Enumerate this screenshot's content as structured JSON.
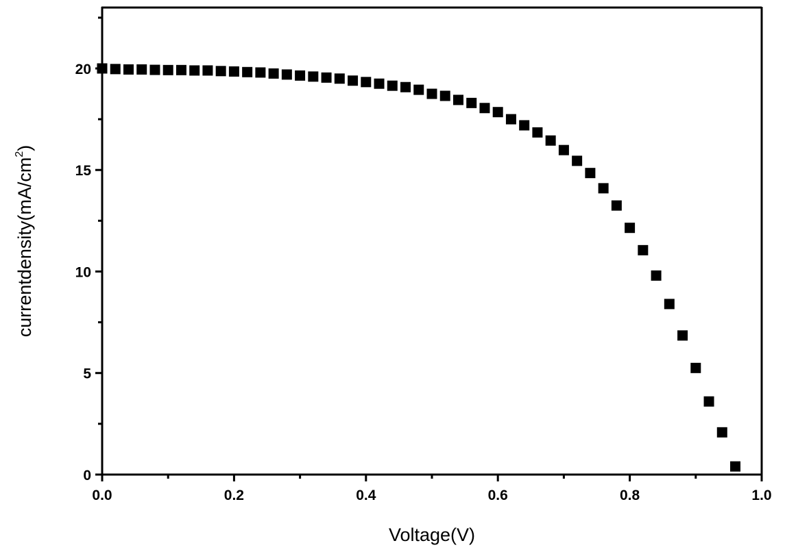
{
  "chart_data": {
    "type": "scatter",
    "title": "",
    "xlabel": "Voltage(V)",
    "ylabel": "currentdensity(mA/cm",
    "ylabel_superscript": "2",
    "ylabel_suffix": ")",
    "xlim": [
      0,
      1.0
    ],
    "ylim": [
      0,
      23
    ],
    "xticks": [
      "0.0",
      "0.2",
      "0.4",
      "0.6",
      "0.8",
      "1.0"
    ],
    "yticks": [
      "0",
      "5",
      "10",
      "15",
      "20"
    ],
    "grid": false,
    "marker": "square",
    "color": "#000000",
    "x": [
      0,
      0.02,
      0.04,
      0.06,
      0.08,
      0.1,
      0.12,
      0.14,
      0.16,
      0.18,
      0.2,
      0.22,
      0.24,
      0.26,
      0.28,
      0.3,
      0.32,
      0.34,
      0.36,
      0.38,
      0.4,
      0.42,
      0.44,
      0.46,
      0.48,
      0.5,
      0.52,
      0.54,
      0.56,
      0.58,
      0.6,
      0.62,
      0.64,
      0.66,
      0.68,
      0.7,
      0.72,
      0.74,
      0.76,
      0.78,
      0.8,
      0.82,
      0.84,
      0.86,
      0.88,
      0.9,
      0.92,
      0.94,
      0.96
    ],
    "y": [
      20.0,
      19.97,
      19.95,
      19.95,
      19.93,
      19.92,
      19.92,
      19.9,
      19.9,
      19.87,
      19.85,
      19.82,
      19.8,
      19.75,
      19.7,
      19.65,
      19.6,
      19.55,
      19.5,
      19.4,
      19.33,
      19.25,
      19.15,
      19.08,
      18.95,
      18.75,
      18.65,
      18.45,
      18.3,
      18.05,
      17.85,
      17.5,
      17.2,
      16.85,
      16.45,
      15.98,
      15.45,
      14.85,
      14.1,
      13.25,
      12.15,
      11.05,
      9.8,
      8.4,
      6.85,
      5.25,
      3.6,
      2.08,
      0.4
    ]
  }
}
